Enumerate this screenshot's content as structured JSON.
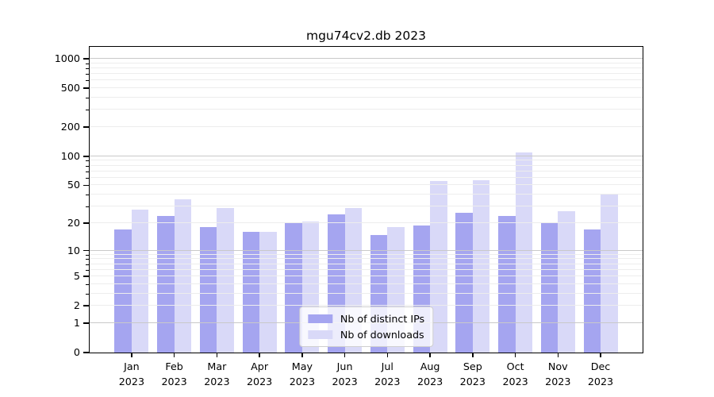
{
  "title": "mgu74cv2.db 2023",
  "chart_data": {
    "type": "bar",
    "title": "mgu74cv2.db 2023",
    "categories": [
      "Jan",
      "Feb",
      "Mar",
      "Apr",
      "May",
      "Jun",
      "Jul",
      "Aug",
      "Sep",
      "Oct",
      "Nov",
      "Dec"
    ],
    "year": "2023",
    "series": [
      {
        "name": "Nb of distinct IPs",
        "color": "#a5a5f0",
        "values": [
          17,
          24,
          18,
          16,
          20,
          25,
          15,
          19,
          26,
          24,
          20,
          17
        ]
      },
      {
        "name": "Nb of downloads",
        "color": "#d9d9f8",
        "values": [
          28,
          36,
          29,
          16,
          21,
          29,
          18,
          55,
          57,
          110,
          27,
          40
        ]
      }
    ],
    "xlabel": "",
    "ylabel": "",
    "y_scale": "symlog",
    "ylim": [
      0,
      1000
    ],
    "y_ticks": [
      0,
      1,
      2,
      5,
      10,
      20,
      50,
      100,
      200,
      500,
      1000
    ],
    "y_minor_ticks": [
      3,
      4,
      6,
      7,
      8,
      9,
      30,
      40,
      60,
      70,
      80,
      90,
      300,
      400,
      600,
      700,
      800,
      900
    ],
    "y_major_gridlines": [
      1,
      10,
      100,
      1000
    ],
    "grid": true,
    "legend_position": "lower center"
  }
}
